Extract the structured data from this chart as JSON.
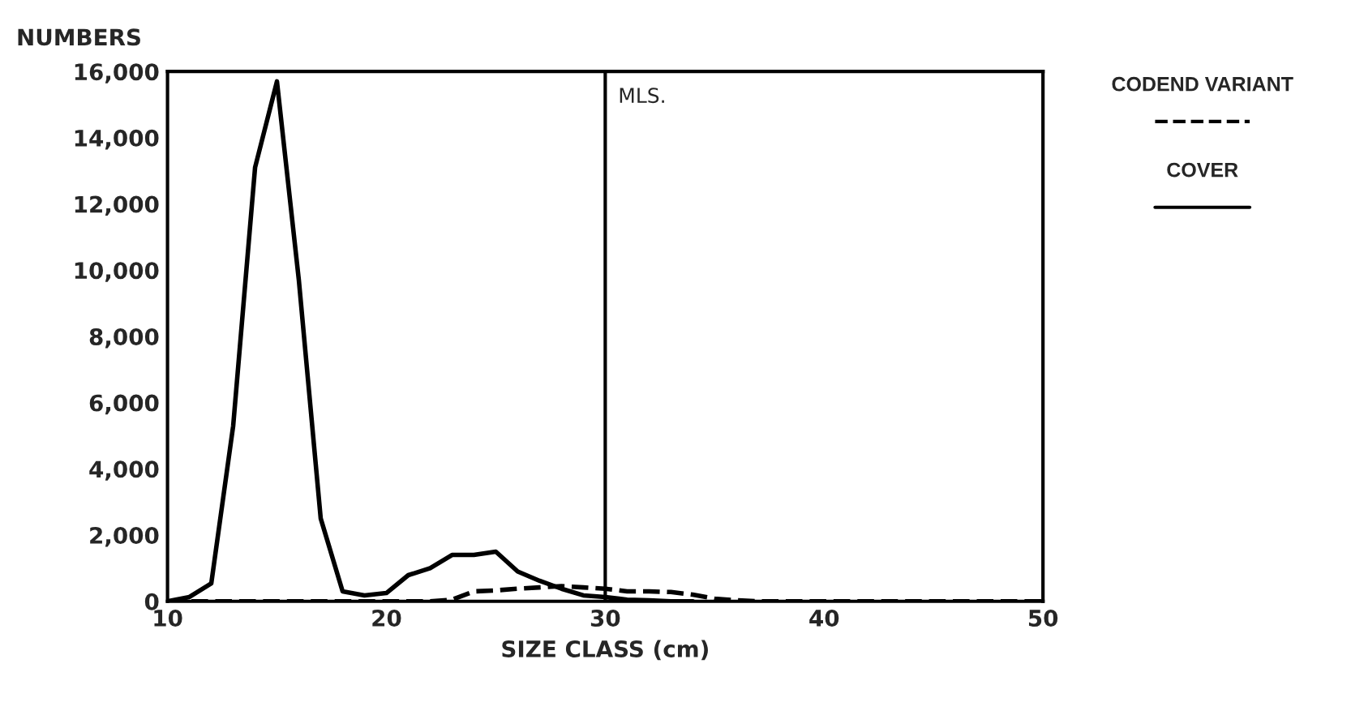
{
  "chart_data": {
    "type": "line",
    "xlabel": "SIZE CLASS (cm)",
    "ylabel": "NUMBERS",
    "x": [
      10,
      11,
      12,
      13,
      14,
      15,
      16,
      17,
      18,
      19,
      20,
      21,
      22,
      23,
      24,
      25,
      26,
      27,
      28,
      29,
      30,
      31,
      32,
      33,
      34,
      35,
      36,
      37,
      38,
      39,
      40,
      41,
      42,
      43,
      44,
      45,
      46,
      47,
      48,
      49,
      50
    ],
    "series": [
      {
        "name": "CODEND VARIANT",
        "color": "#000000",
        "line_style": "dashed",
        "values": [
          0,
          0,
          0,
          0,
          0,
          0,
          0,
          0,
          0,
          0,
          0,
          0,
          0,
          50,
          300,
          330,
          380,
          420,
          460,
          420,
          380,
          300,
          300,
          280,
          200,
          80,
          30,
          0,
          0,
          0,
          0,
          0,
          0,
          0,
          0,
          0,
          0,
          0,
          0,
          0,
          0
        ]
      },
      {
        "name": "COVER",
        "color": "#000000",
        "line_style": "solid",
        "values": [
          0,
          130,
          540,
          5300,
          13100,
          15700,
          9700,
          2500,
          300,
          180,
          250,
          790,
          1000,
          1400,
          1400,
          1500,
          900,
          620,
          380,
          180,
          130,
          50,
          30,
          0,
          0,
          null,
          null,
          null,
          null,
          null,
          null,
          null,
          null,
          null,
          null,
          null,
          null,
          null,
          null,
          null,
          null
        ]
      }
    ],
    "xlim": [
      10,
      50
    ],
    "xticks": [
      10,
      20,
      30,
      40,
      50
    ],
    "ylim": [
      0,
      16000
    ],
    "yticks": [
      0,
      {
        "value": 2000,
        "label": "2,000"
      },
      {
        "value": 4000,
        "label": "4,000"
      },
      {
        "value": 6000,
        "label": "6,000"
      },
      {
        "value": 8000,
        "label": "8,000"
      },
      {
        "value": 10000,
        "label": "10,000"
      },
      {
        "value": 12000,
        "label": "12,000"
      },
      {
        "value": 14000,
        "label": "14,000"
      },
      {
        "value": 16000,
        "label": "16,000"
      }
    ],
    "ref_lines": [
      {
        "axis": "x",
        "value": 30,
        "label": "MLS.",
        "color": "#000000"
      }
    ],
    "grid": false,
    "legend": "right",
    "marker": "none"
  }
}
